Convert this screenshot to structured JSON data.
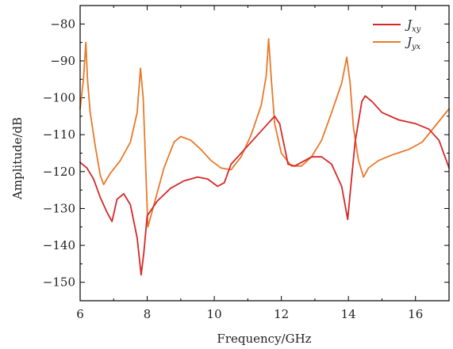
{
  "chart_data": {
    "type": "line",
    "title": "",
    "xlabel": "Frequency/GHz",
    "ylabel": "Amplitude/dB",
    "xlim": [
      6,
      17
    ],
    "ylim": [
      -155,
      -75
    ],
    "xticks": [
      6,
      8,
      10,
      12,
      14,
      16
    ],
    "yticks": [
      -150,
      -140,
      -130,
      -120,
      -110,
      -100,
      -90,
      -80
    ],
    "x_tick_labels": [
      "6",
      "8",
      "10",
      "12",
      "14",
      "16"
    ],
    "y_tick_labels": [
      "−150",
      "−140",
      "−130",
      "−120",
      "−110",
      "−100",
      "−90",
      "−80"
    ],
    "grid": false,
    "legend_position": "top-right",
    "series": [
      {
        "name": "J",
        "name_sub": "xy",
        "color": "#d62728",
        "x": [
          6.0,
          6.2,
          6.4,
          6.6,
          6.8,
          6.95,
          7.1,
          7.3,
          7.5,
          7.7,
          7.82,
          7.9,
          8.0,
          8.3,
          8.7,
          9.1,
          9.5,
          9.8,
          10.1,
          10.3,
          10.5,
          10.7,
          11.0,
          11.3,
          11.6,
          11.8,
          11.95,
          12.2,
          12.4,
          12.6,
          12.9,
          13.2,
          13.5,
          13.8,
          13.98,
          14.05,
          14.2,
          14.4,
          14.5,
          14.7,
          15.0,
          15.5,
          16.0,
          16.4,
          16.7,
          17.0
        ],
        "values": [
          -117.5,
          -119,
          -122,
          -127,
          -131,
          -133.5,
          -127.5,
          -126,
          -129,
          -138,
          -148,
          -142,
          -132,
          -128,
          -124.5,
          -122.5,
          -121.5,
          -122,
          -124,
          -123,
          -118,
          -116,
          -113,
          -110,
          -107,
          -105,
          -107,
          -118,
          -118.5,
          -117.5,
          -116,
          -116,
          -118,
          -124,
          -133,
          -126,
          -112,
          -101,
          -99.5,
          -101,
          -104,
          -106,
          -107,
          -108.5,
          -111.5,
          -119
        ]
      },
      {
        "name": "J",
        "name_sub": "yx",
        "color": "#e8792a",
        "x": [
          6.0,
          6.1,
          6.17,
          6.22,
          6.3,
          6.45,
          6.6,
          6.7,
          6.9,
          7.2,
          7.5,
          7.7,
          7.8,
          7.88,
          8.02,
          8.2,
          8.5,
          8.8,
          9.0,
          9.3,
          9.6,
          9.9,
          10.2,
          10.5,
          10.8,
          11.1,
          11.4,
          11.55,
          11.62,
          11.7,
          11.8,
          12.0,
          12.3,
          12.6,
          12.9,
          13.2,
          13.5,
          13.8,
          13.95,
          14.05,
          14.15,
          14.3,
          14.45,
          14.6,
          14.9,
          15.3,
          15.8,
          16.2,
          16.6,
          17.0
        ],
        "values": [
          -103,
          -95,
          -85,
          -95,
          -104,
          -113,
          -121,
          -123.5,
          -120.5,
          -117,
          -112,
          -104,
          -92,
          -100,
          -135,
          -129,
          -119,
          -112,
          -110.5,
          -111.5,
          -114,
          -117,
          -119,
          -119.5,
          -116,
          -110,
          -102,
          -94,
          -84,
          -95,
          -107,
          -115,
          -118.5,
          -118.5,
          -116,
          -111.5,
          -104,
          -96,
          -89,
          -96,
          -108,
          -117,
          -121.5,
          -119,
          -117,
          -115.5,
          -114,
          -112,
          -107.5,
          -103
        ]
      }
    ]
  }
}
